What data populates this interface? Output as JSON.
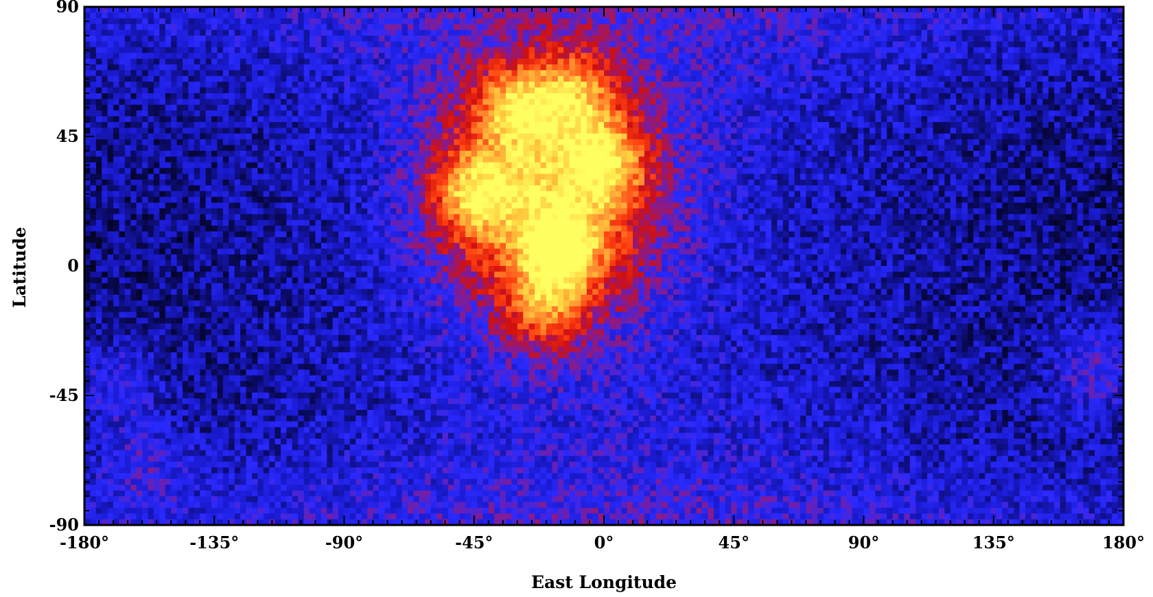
{
  "chart_data": {
    "type": "heatmap",
    "title": "",
    "xlabel": "East Longitude",
    "ylabel": "Latitude",
    "xlim": [
      -180,
      180
    ],
    "ylim": [
      -90,
      90
    ],
    "x_ticks": [
      -180,
      -135,
      -90,
      -45,
      0,
      45,
      90,
      135,
      180
    ],
    "x_tick_labels": [
      "-180°",
      "-135°",
      "-90°",
      "-45°",
      "0°",
      "45°",
      "90°",
      "135°",
      "180°"
    ],
    "y_ticks": [
      90,
      45,
      0,
      -45,
      -90
    ],
    "y_tick_labels": [
      "90",
      "45",
      "0",
      "-45",
      "-90"
    ],
    "grid": false,
    "legend": "none",
    "colormap": [
      "#000000",
      "#0a0a60",
      "#1a1ad0",
      "#2a2aff",
      "#8a1a8a",
      "#d01010",
      "#ff4010",
      "#ff9030",
      "#ffd040",
      "#ffff60"
    ],
    "resolution_deg": 2,
    "hotspots": [
      {
        "lon": -15,
        "lat": 5,
        "intensity": 1.0
      },
      {
        "lon": -45,
        "lat": 25,
        "intensity": 0.95
      },
      {
        "lon": 0,
        "lat": 36,
        "intensity": 0.9
      },
      {
        "lon": -30,
        "lat": 55,
        "intensity": 0.9
      },
      {
        "lon": -10,
        "lat": 60,
        "intensity": 0.75
      },
      {
        "lon": -20,
        "lat": -15,
        "intensity": 0.75
      }
    ],
    "secondary_features": [
      {
        "lon": 170,
        "lat": -35,
        "intensity": 0.45
      },
      {
        "lon": -170,
        "lat": -40,
        "intensity": 0.35
      },
      {
        "lon": -160,
        "lat": -70,
        "intensity": 0.3
      }
    ]
  }
}
